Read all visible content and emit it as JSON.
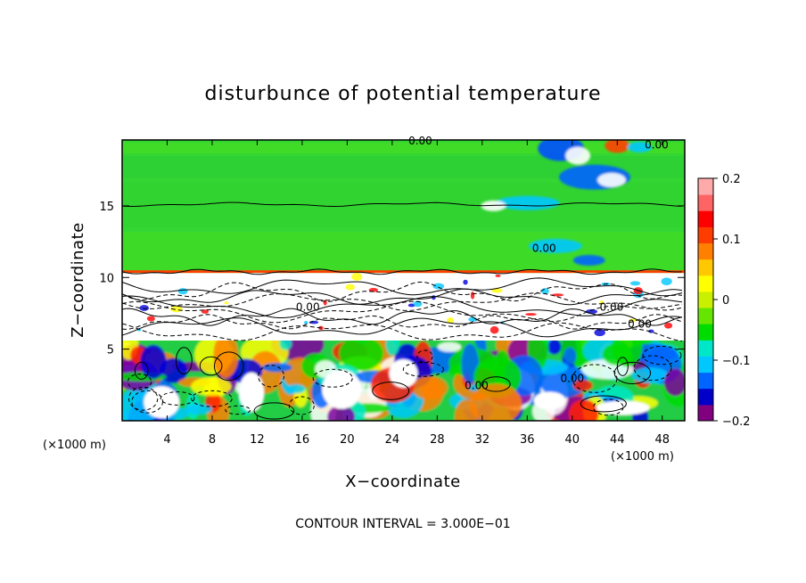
{
  "chart_data": {
    "type": "heatmap",
    "title": "disturbunce of potential temperature",
    "xlabel": "X−coordinate",
    "ylabel": "Z−coordinate",
    "x_units": "(×1000 m)",
    "z_units": "(×1000 m)",
    "footer": "CONTOUR INTERVAL = 3.000E−01",
    "xlim": [
      0,
      50
    ],
    "ylim": [
      0,
      19.6
    ],
    "x_ticks": [
      4,
      8,
      12,
      16,
      20,
      24,
      28,
      32,
      36,
      40,
      44,
      48
    ],
    "y_ticks": [
      5,
      10,
      15
    ],
    "colorbar": {
      "range": [
        -0.2,
        0.2
      ],
      "ticks": [
        0.2,
        0.1,
        0,
        -0.1,
        -0.2
      ],
      "tick_labels": [
        "0.2",
        "0.1",
        "0",
        "−0.1",
        "−0.2"
      ],
      "colors": [
        "#800080",
        "#0000c8",
        "#0064ff",
        "#00c8ff",
        "#00e6c8",
        "#00dc00",
        "#64e600",
        "#c8f000",
        "#ffff00",
        "#ffc800",
        "#ff8000",
        "#ff3c00",
        "#ff0000",
        "#ff6464",
        "#ffaaaa"
      ]
    },
    "contour_labels": [
      {
        "x": 26.5,
        "y": 19.3,
        "text": "0.00"
      },
      {
        "x": 47.5,
        "y": 19.0,
        "text": "0.00"
      },
      {
        "x": 37.5,
        "y": 11.8,
        "text": "0.00"
      },
      {
        "x": 16.5,
        "y": 7.7,
        "text": "0.00"
      },
      {
        "x": 43.5,
        "y": 7.7,
        "text": "0.00"
      },
      {
        "x": 46.0,
        "y": 6.5,
        "text": "0.00"
      },
      {
        "x": 31.5,
        "y": 2.2,
        "text": "0.00"
      },
      {
        "x": 40.0,
        "y": 2.7,
        "text": "0.00"
      }
    ]
  }
}
